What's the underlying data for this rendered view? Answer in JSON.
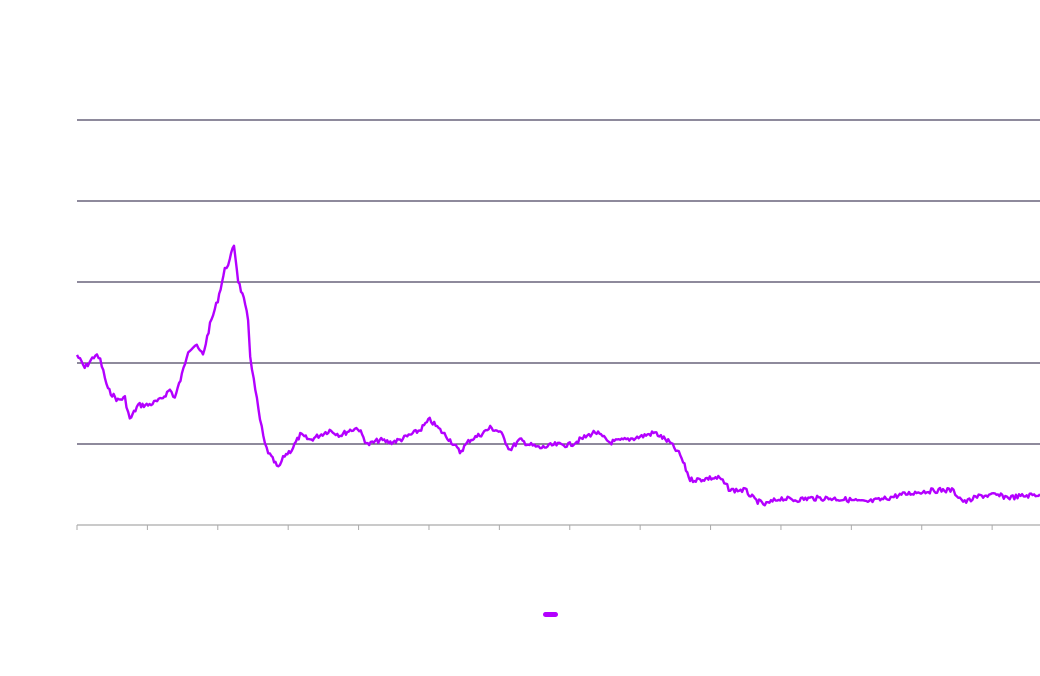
{
  "chart_data": {
    "type": "line",
    "title": "",
    "xlabel": "",
    "ylabel": "",
    "grid": true,
    "legend_placement": "bottom-center",
    "xlim": [
      0,
      13.68
    ],
    "ylim": [
      0,
      5
    ],
    "x_ticks": [
      0,
      1,
      2,
      3,
      4,
      5,
      6,
      7,
      8,
      9,
      10,
      11,
      12,
      13
    ],
    "y_gridlines": [
      1,
      2,
      3,
      4,
      5
    ],
    "colors": {
      "series": "#b300ff",
      "grid": "#4a4560",
      "axis": "#aaaaaa"
    },
    "series": [
      {
        "name": "",
        "x": [
          0,
          0.11,
          0.26,
          0.33,
          0.44,
          0.58,
          0.68,
          0.75,
          0.87,
          1.01,
          1.18,
          1.32,
          1.39,
          1.49,
          1.58,
          1.68,
          1.79,
          1.89,
          2.0,
          2.1,
          2.17,
          2.23,
          2.29,
          2.37,
          2.43,
          2.46,
          2.51,
          2.6,
          2.67,
          2.74,
          2.86,
          2.95,
          3.05,
          3.17,
          3.31,
          3.45,
          3.59,
          3.74,
          3.88,
          3.99,
          4.13,
          4.3,
          4.45,
          4.59,
          4.73,
          4.87,
          5.01,
          5.16,
          5.3,
          5.44,
          5.58,
          5.72,
          5.87,
          6.01,
          6.15,
          6.29,
          6.43,
          6.58,
          6.79,
          7.0,
          7.14,
          7.36,
          7.57,
          7.78,
          8.0,
          8.21,
          8.42,
          8.57,
          8.71,
          8.85,
          8.99,
          9.13,
          9.28,
          9.49,
          9.63,
          9.77,
          9.99,
          10.2,
          10.41,
          10.7,
          10.98,
          11.19,
          11.41,
          11.69,
          11.97,
          12.26,
          12.43,
          12.61,
          12.83,
          13.04,
          13.25,
          13.47,
          13.68
        ],
        "y": [
          2.1,
          1.94,
          2.1,
          2.04,
          1.67,
          1.54,
          1.57,
          1.3,
          1.48,
          1.48,
          1.54,
          1.67,
          1.57,
          1.85,
          2.16,
          2.22,
          2.1,
          2.47,
          2.78,
          3.15,
          3.27,
          3.46,
          3.02,
          2.78,
          2.53,
          2.1,
          1.79,
          1.3,
          0.99,
          0.86,
          0.7,
          0.86,
          0.93,
          1.11,
          1.05,
          1.11,
          1.17,
          1.11,
          1.17,
          1.2,
          0.99,
          1.05,
          1.02,
          1.05,
          1.11,
          1.17,
          1.3,
          1.17,
          1.05,
          0.9,
          1.05,
          1.11,
          1.2,
          1.15,
          0.93,
          1.05,
          0.99,
          0.95,
          0.99,
          0.99,
          1.05,
          1.15,
          1.02,
          1.05,
          1.09,
          1.14,
          1.02,
          0.86,
          0.56,
          0.56,
          0.58,
          0.58,
          0.43,
          0.43,
          0.31,
          0.25,
          0.33,
          0.31,
          0.33,
          0.33,
          0.31,
          0.28,
          0.31,
          0.37,
          0.41,
          0.43,
          0.43,
          0.28,
          0.36,
          0.37,
          0.34,
          0.36,
          0.38
        ]
      }
    ]
  }
}
